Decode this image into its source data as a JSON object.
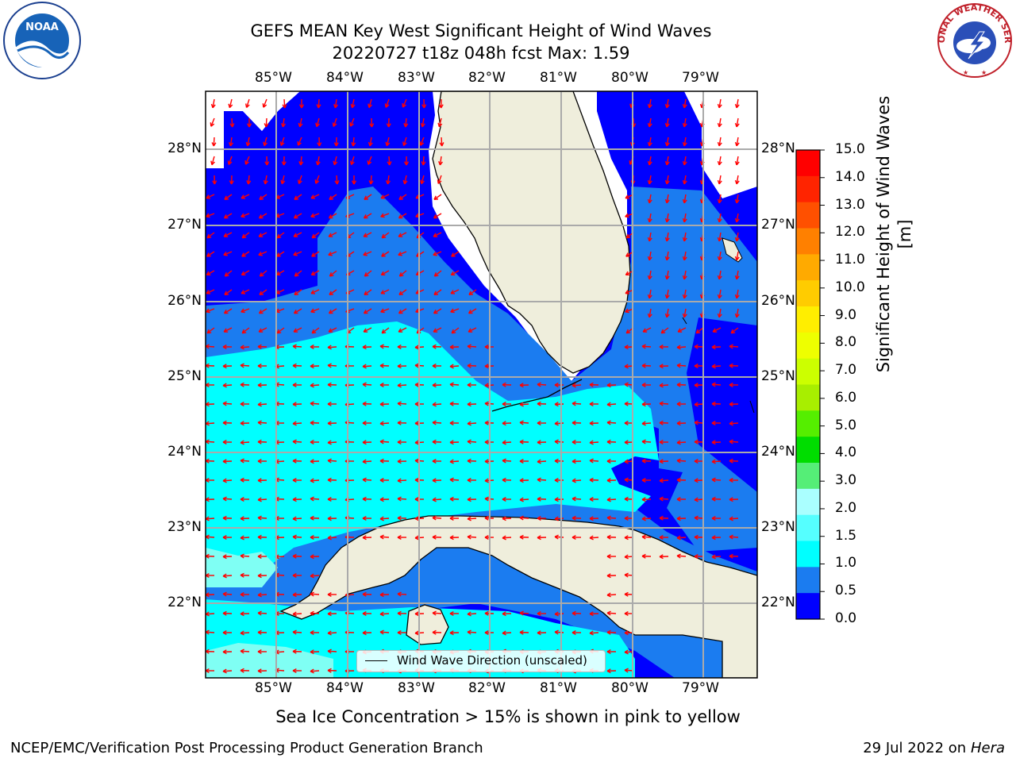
{
  "header": {
    "title_line1": "GEFS MEAN Key West Significant Height of Wind Waves",
    "title_line2": "20220727 t18z 048h fcst   Max: 1.59"
  },
  "logos": {
    "left": {
      "icon": "noaa-logo",
      "text": "NOAA"
    },
    "right": {
      "icon": "nws-logo",
      "text": "NATIONAL WEATHER SERVICE"
    }
  },
  "map": {
    "lon_labels": [
      "85°W",
      "84°W",
      "83°W",
      "82°W",
      "81°W",
      "80°W",
      "79°W"
    ],
    "lat_labels": [
      "28°N",
      "27°N",
      "26°N",
      "25°N",
      "24°N",
      "23°N",
      "22°N"
    ],
    "colors": {
      "ocean_lt_0_5": "#0000ff",
      "ocean_0_5_1": "#1b7cf0",
      "ocean_1_1_5": "#00ffff",
      "ocean_1_5_2": "#7ffff4",
      "land": "#efeedc",
      "arrow": "#ff0000",
      "grid": "#aaaaaa"
    },
    "legend_label": "Wind Wave Direction (unscaled)"
  },
  "colorbar": {
    "title": "Significant Height of Wind Waves [m]",
    "tick_labels": [
      "15.0",
      "14.0",
      "13.0",
      "12.0",
      "11.0",
      "10.0",
      "9.0",
      "8.0",
      "7.0",
      "6.0",
      "5.0",
      "4.0",
      "3.0",
      "2.0",
      "1.5",
      "1.0",
      "0.5",
      "0.0"
    ],
    "colors_top_to_bottom": [
      "#ff0000",
      "#ff2400",
      "#ff5000",
      "#ff8000",
      "#ffaa00",
      "#ffcc00",
      "#ffee00",
      "#eeff00",
      "#ccff00",
      "#a8ee00",
      "#55ee00",
      "#00dd00",
      "#55ee77",
      "#aaffff",
      "#55ffff",
      "#00ffff",
      "#1b7cf0",
      "#0000ff"
    ]
  },
  "subtitle": "Sea Ice Concentration > 15% is shown in pink to yellow",
  "footer": {
    "left": "NCEP/EMC/Verification Post Processing Product Generation Branch",
    "right_date": "29 Jul 2022 on ",
    "right_host": "Hera"
  }
}
